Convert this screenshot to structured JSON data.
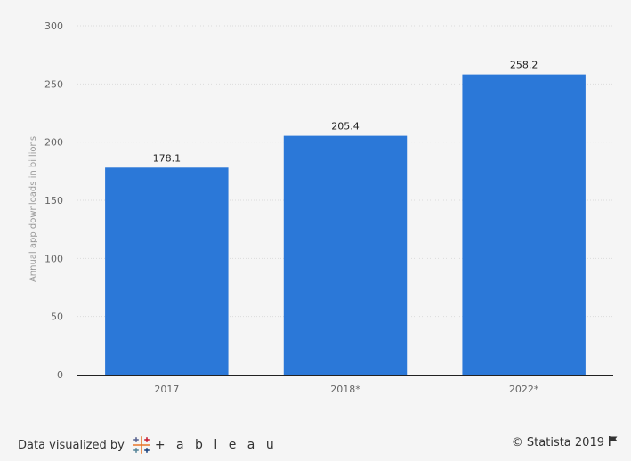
{
  "chart_data": {
    "type": "bar",
    "categories": [
      "2017",
      "2018*",
      "2022*"
    ],
    "values": [
      178.1,
      205.4,
      258.2
    ],
    "value_labels": [
      "178.1",
      "205.4",
      "258.2"
    ],
    "ylabel": "Annual app downloads in billions",
    "ylim": [
      0,
      300
    ],
    "yticks": [
      0,
      50,
      100,
      150,
      200,
      250,
      300
    ],
    "grid": true,
    "bar_color": "#2b78d8"
  },
  "footer": {
    "credit_text": "Data visualized by",
    "tableau_word": "+ a b l e a u",
    "copyright": "© Statista 2019"
  },
  "icons": {
    "tableau": "tableau-logo-icon",
    "flag": "flag-icon"
  }
}
